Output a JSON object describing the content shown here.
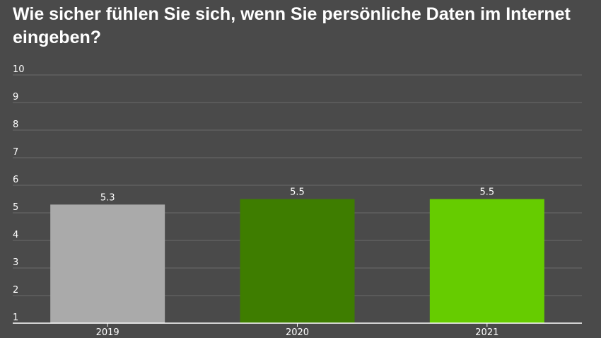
{
  "chart_data": {
    "type": "bar",
    "title": "Wie sicher fühlen Sie sich, wenn Sie persönliche Daten im Internet eingeben?",
    "xlabel": "",
    "ylabel": "",
    "categories": [
      "2019",
      "2020",
      "2021"
    ],
    "values": [
      5.3,
      5.5,
      5.5
    ],
    "data_labels": [
      "5.3",
      "5.5",
      "5.5"
    ],
    "colors": [
      "#aaaaaa",
      "#3e7d00",
      "#66cc00"
    ],
    "ylim": [
      1,
      10
    ],
    "yticks": [
      1,
      2,
      3,
      4,
      5,
      6,
      7,
      8,
      9,
      10
    ],
    "grid": true,
    "legend": "none"
  }
}
